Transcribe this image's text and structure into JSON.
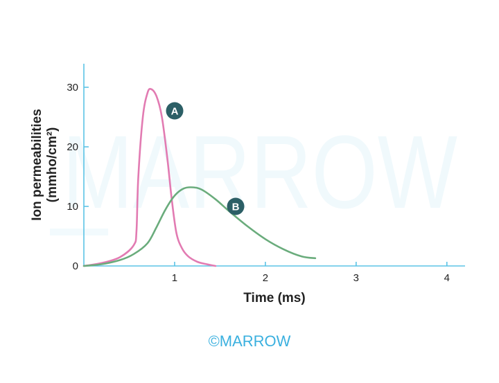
{
  "watermark": "MARROW",
  "footer_logo": "©MARROW",
  "colors": {
    "axis": "#5bc3e6",
    "series_a": "#e27bb2",
    "series_b": "#6aac7c",
    "badge": "#2c5f66",
    "watermark": "#1ba3d6",
    "logo": "#3ab0df"
  },
  "chart_data": {
    "type": "line",
    "title": "",
    "xlabel": "Time (ms)",
    "ylabel": [
      "Ion permeabilities",
      "(mmho/cm²)"
    ],
    "xlim": [
      0,
      4.2
    ],
    "ylim": [
      0,
      30
    ],
    "xticks": [
      1,
      2,
      3,
      4
    ],
    "yticks": [
      0,
      10,
      20,
      30
    ],
    "grid": false,
    "legend": "none",
    "series": [
      {
        "name": "A",
        "points": [
          [
            0,
            0
          ],
          [
            0.2,
            0.5
          ],
          [
            0.4,
            1.5
          ],
          [
            0.55,
            3.5
          ],
          [
            0.58,
            6
          ],
          [
            0.6,
            15
          ],
          [
            0.65,
            25
          ],
          [
            0.7,
            29
          ],
          [
            0.74,
            29.7
          ],
          [
            0.8,
            28.5
          ],
          [
            0.86,
            25
          ],
          [
            0.92,
            18
          ],
          [
            0.97,
            11
          ],
          [
            1.02,
            5.5
          ],
          [
            1.08,
            3
          ],
          [
            1.15,
            1.6
          ],
          [
            1.25,
            0.7
          ],
          [
            1.35,
            0.3
          ],
          [
            1.45,
            0
          ]
        ]
      },
      {
        "name": "B",
        "points": [
          [
            0,
            0
          ],
          [
            0.2,
            0.3
          ],
          [
            0.4,
            1
          ],
          [
            0.55,
            2
          ],
          [
            0.7,
            3.8
          ],
          [
            0.8,
            6.5
          ],
          [
            0.9,
            9.5
          ],
          [
            1.0,
            11.8
          ],
          [
            1.1,
            13
          ],
          [
            1.2,
            13.2
          ],
          [
            1.3,
            12.8
          ],
          [
            1.45,
            11.2
          ],
          [
            1.6,
            9.2
          ],
          [
            1.8,
            6.7
          ],
          [
            2.0,
            4.5
          ],
          [
            2.2,
            2.8
          ],
          [
            2.4,
            1.6
          ],
          [
            2.55,
            1.3
          ]
        ]
      }
    ]
  }
}
